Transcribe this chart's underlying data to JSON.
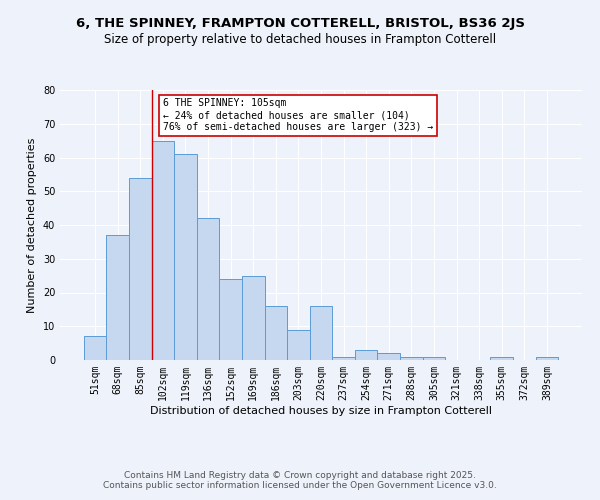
{
  "title": "6, THE SPINNEY, FRAMPTON COTTERELL, BRISTOL, BS36 2JS",
  "subtitle": "Size of property relative to detached houses in Frampton Cotterell",
  "xlabel": "Distribution of detached houses by size in Frampton Cotterell",
  "ylabel": "Number of detached properties",
  "categories": [
    "51sqm",
    "68sqm",
    "85sqm",
    "102sqm",
    "119sqm",
    "136sqm",
    "152sqm",
    "169sqm",
    "186sqm",
    "203sqm",
    "220sqm",
    "237sqm",
    "254sqm",
    "271sqm",
    "288sqm",
    "305sqm",
    "321sqm",
    "338sqm",
    "355sqm",
    "372sqm",
    "389sqm"
  ],
  "values": [
    7,
    37,
    54,
    65,
    61,
    42,
    24,
    25,
    16,
    9,
    16,
    1,
    3,
    2,
    1,
    1,
    0,
    0,
    1,
    0,
    1
  ],
  "bar_color": "#c5d8f0",
  "bar_edge_color": "#5b9bd5",
  "annotation_text": "6 THE SPINNEY: 105sqm\n← 24% of detached houses are smaller (104)\n76% of semi-detached houses are larger (323) →",
  "annotation_box_color": "#ffffff",
  "annotation_box_edge": "#cc0000",
  "vline_x_index": 2.5,
  "vline_color": "#cc0000",
  "ylim": [
    0,
    80
  ],
  "yticks": [
    0,
    10,
    20,
    30,
    40,
    50,
    60,
    70,
    80
  ],
  "footnote": "Contains HM Land Registry data © Crown copyright and database right 2025.\nContains public sector information licensed under the Open Government Licence v3.0.",
  "bg_color": "#eef2fa",
  "plot_bg_color": "#eef2fa",
  "title_fontsize": 9.5,
  "subtitle_fontsize": 8.5,
  "axis_label_fontsize": 8,
  "tick_fontsize": 7,
  "annotation_fontsize": 7,
  "footnote_fontsize": 6.5
}
